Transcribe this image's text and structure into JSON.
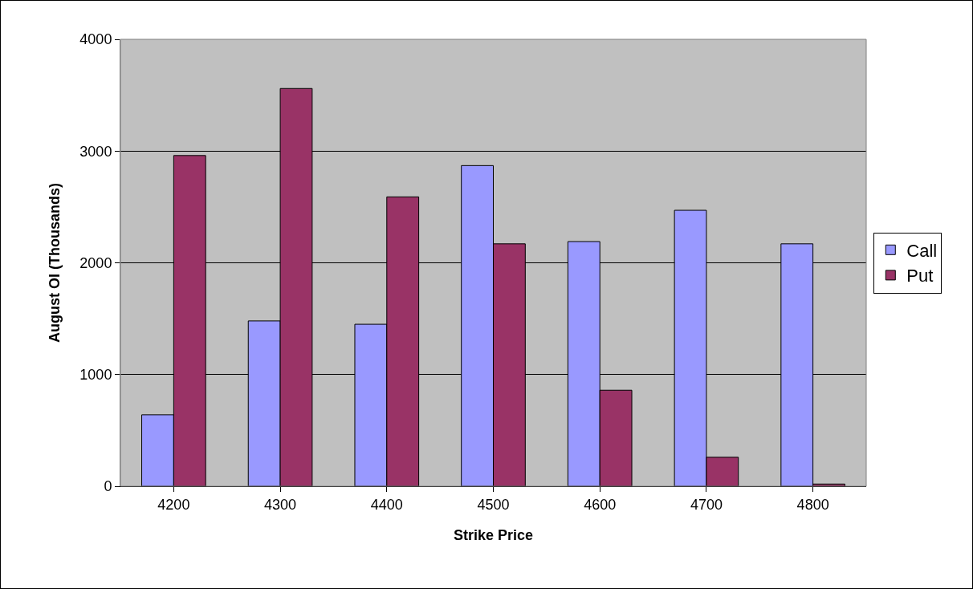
{
  "chart_data": {
    "type": "bar",
    "xlabel": "Strike Price",
    "ylabel": "August OI (Thousands)",
    "categories": [
      "4200",
      "4300",
      "4400",
      "4500",
      "4600",
      "4700",
      "4800"
    ],
    "series": [
      {
        "name": "Call",
        "color": "#9999ff",
        "values": [
          640,
          1480,
          1450,
          2870,
          2190,
          2470,
          2170
        ]
      },
      {
        "name": "Put",
        "color": "#993366",
        "values": [
          2960,
          3560,
          2590,
          2170,
          860,
          260,
          20
        ]
      }
    ],
    "ylim": [
      0,
      4000
    ],
    "yticks": [
      0,
      1000,
      2000,
      3000,
      4000
    ],
    "grid": "y",
    "legend": "right"
  }
}
